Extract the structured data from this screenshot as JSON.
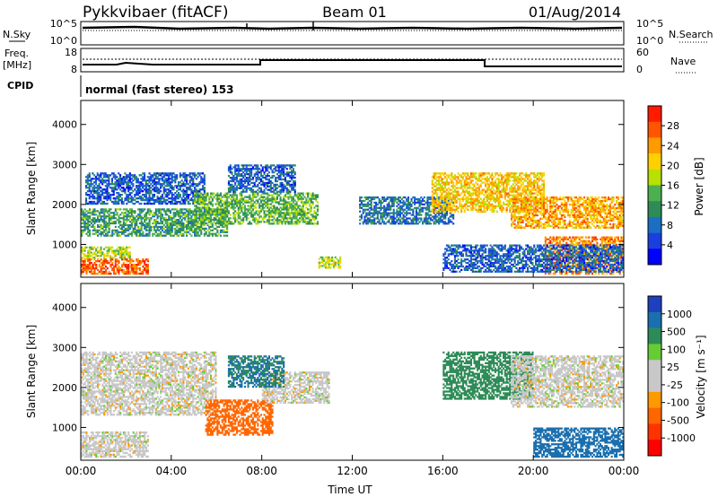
{
  "header": {
    "station": "Pykkvibaer (fitACF)",
    "beam": "Beam 01",
    "date": "01/Aug/2014"
  },
  "panels": {
    "noise": {
      "left_label": "N.Sky",
      "right_label": "N.Search",
      "left_ticks": [
        "10^5",
        "10^0"
      ],
      "right_ticks": [
        "10^5",
        "10^0"
      ]
    },
    "freq": {
      "left_label_1": "Freq.",
      "left_label_2": "[MHz]",
      "right_label": "Nave",
      "left_ticks": [
        "18",
        "8"
      ],
      "right_ticks": [
        "60",
        "0"
      ]
    },
    "cpid": {
      "label": "CPID",
      "value": "normal (fast stereo) 153"
    }
  },
  "colorbars": {
    "power": {
      "label": "Power [dB]",
      "ticks": [
        "28",
        "24",
        "20",
        "16",
        "12",
        "8",
        "4"
      ],
      "colors": [
        "#ff1a00",
        "#ff5500",
        "#ff9a00",
        "#ffd000",
        "#b8e000",
        "#4caf50",
        "#2e8b57",
        "#1a6fc4",
        "#1a3fe0",
        "#0000ff"
      ]
    },
    "velocity": {
      "label": "Velocity [m s⁻¹]",
      "ticks": [
        "1000",
        "500",
        "100",
        "25",
        "-25",
        "-100",
        "-500",
        "-1000"
      ],
      "colors": [
        "#1f3fbf",
        "#1a6fae",
        "#2e8b57",
        "#66cc33",
        "#c8c8c8",
        "#c8c8c8",
        "#ff9900",
        "#ff6600",
        "#ff3300",
        "#ff0000"
      ]
    }
  },
  "chart_data": [
    {
      "type": "heatmap",
      "name": "power",
      "ylabel": "Slant Range [km]",
      "xlabel": "",
      "ylim": [
        180,
        4600
      ],
      "yticks": [
        1000,
        2000,
        3000,
        4000
      ],
      "xlim": [
        0,
        24
      ],
      "units": "dB",
      "scale": [
        0,
        32
      ],
      "regions": [
        {
          "t0": 0.0,
          "t1": 3.0,
          "r0": 250,
          "r1": 650,
          "level": 28
        },
        {
          "t0": 0.0,
          "t1": 2.2,
          "r0": 650,
          "r1": 950,
          "level": 18
        },
        {
          "t0": 0.0,
          "t1": 6.5,
          "r0": 1200,
          "r1": 1900,
          "level": 12
        },
        {
          "t0": 0.2,
          "t1": 5.5,
          "r0": 2000,
          "r1": 2800,
          "level": 6
        },
        {
          "t0": 5.0,
          "t1": 10.5,
          "r0": 1500,
          "r1": 2300,
          "level": 14
        },
        {
          "t0": 6.5,
          "t1": 9.5,
          "r0": 2300,
          "r1": 3000,
          "level": 6
        },
        {
          "t0": 10.5,
          "t1": 11.5,
          "r0": 400,
          "r1": 700,
          "level": 18
        },
        {
          "t0": 12.3,
          "t1": 16.5,
          "r0": 1500,
          "r1": 2200,
          "level": 8
        },
        {
          "t0": 15.5,
          "t1": 20.5,
          "r0": 1800,
          "r1": 2800,
          "level": 22
        },
        {
          "t0": 19.0,
          "t1": 24.0,
          "r0": 1400,
          "r1": 2200,
          "level": 24
        },
        {
          "t0": 20.5,
          "t1": 24.0,
          "r0": 250,
          "r1": 1200,
          "level": 26
        },
        {
          "t0": 16.0,
          "t1": 24.0,
          "r0": 300,
          "r1": 1000,
          "level": 6
        }
      ]
    },
    {
      "type": "heatmap",
      "name": "velocity",
      "ylabel": "Slant Range [km]",
      "xlabel": "Time UT",
      "ylim": [
        180,
        4600
      ],
      "yticks": [
        1000,
        2000,
        3000,
        4000
      ],
      "xlim": [
        0,
        24
      ],
      "xticks": [
        "00:00",
        "04:00",
        "08:00",
        "12:00",
        "16:00",
        "20:00",
        "00:00"
      ],
      "units": "m/s",
      "regions": [
        {
          "t0": 0.0,
          "t1": 6.0,
          "r0": 1300,
          "r1": 2900,
          "value": 0
        },
        {
          "t0": 0.0,
          "t1": 3.0,
          "r0": 250,
          "r1": 900,
          "value": 0
        },
        {
          "t0": 5.5,
          "t1": 8.5,
          "r0": 800,
          "r1": 1700,
          "value": -150
        },
        {
          "t0": 8.0,
          "t1": 11.0,
          "r0": 1600,
          "r1": 2400,
          "value": 0
        },
        {
          "t0": 6.5,
          "t1": 9.0,
          "r0": 2000,
          "r1": 2800,
          "value": 300
        },
        {
          "t0": 16.0,
          "t1": 20.0,
          "r0": 1700,
          "r1": 2900,
          "value": 120
        },
        {
          "t0": 19.0,
          "t1": 24.0,
          "r0": 1500,
          "r1": 2800,
          "value": 0
        },
        {
          "t0": 20.0,
          "t1": 24.0,
          "r0": 250,
          "r1": 1000,
          "value": 500
        }
      ]
    }
  ]
}
